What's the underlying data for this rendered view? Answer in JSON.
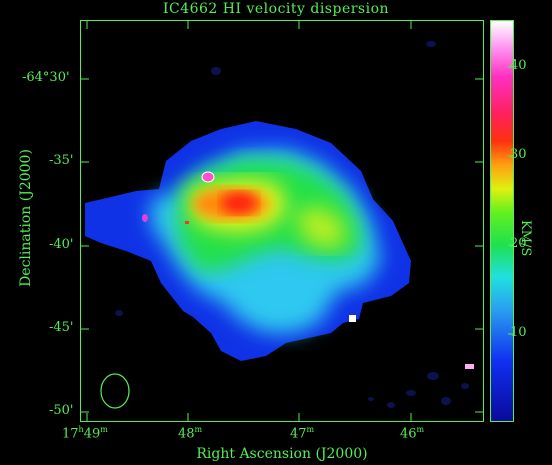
{
  "title": "IC4662   HI velocity dispersion",
  "xlabel": "Right Ascension (J2000)",
  "ylabel": "Declination (J2000)",
  "colorbar": {
    "unit": "KM/S",
    "ticks": [
      "40",
      "30",
      "20",
      "10"
    ],
    "min": 0,
    "max": 45
  },
  "x_ticks": [
    {
      "h": "17",
      "hm": "h",
      "m": "49",
      "mu": "m"
    },
    {
      "m": "48",
      "mu": "m"
    },
    {
      "m": "47",
      "mu": "m"
    },
    {
      "m": "46",
      "mu": "m"
    }
  ],
  "y_ticks": [
    "-64°30'",
    "-35'",
    "-40'",
    "-45'",
    "-50'"
  ],
  "colors": {
    "axis": "#55ee55",
    "background": "#000000",
    "beam": "#55ee55"
  }
}
